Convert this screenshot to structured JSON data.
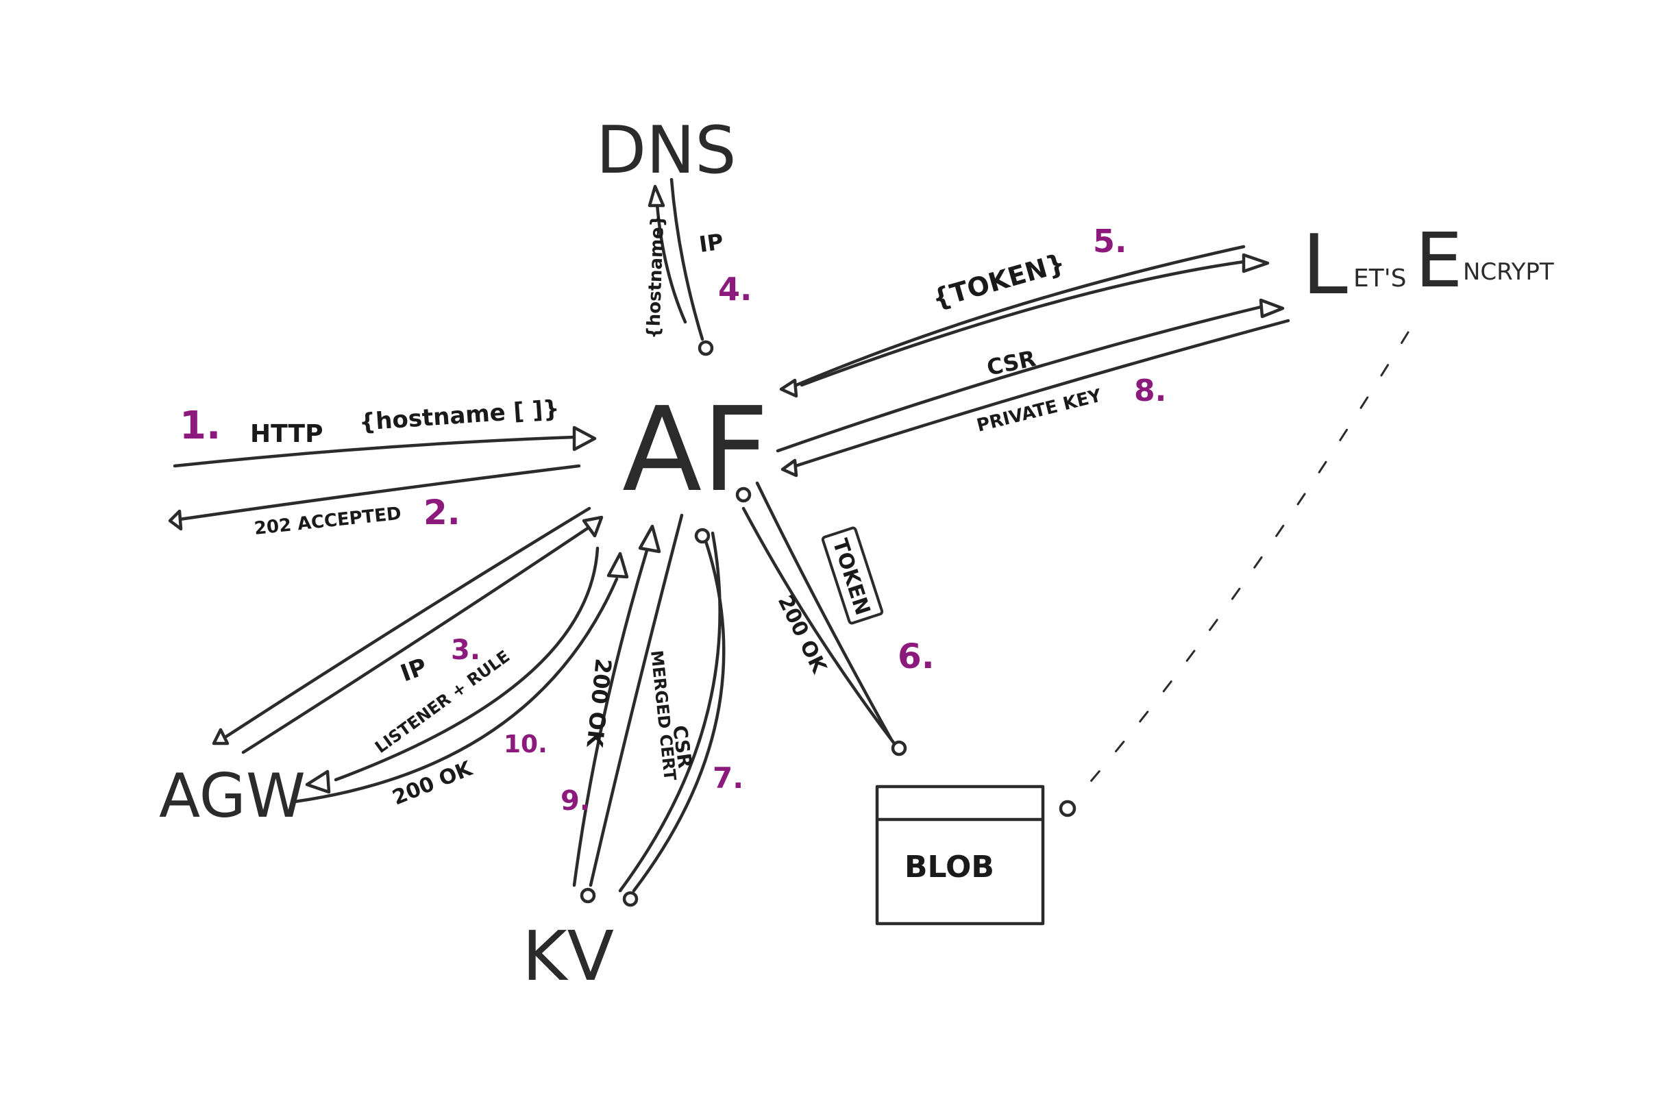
{
  "colors": {
    "ink": "#2b2b2b",
    "step_number": "#8b1a7c",
    "background": "#ffffff"
  },
  "nodes": {
    "dns": "DNS",
    "af": "AF",
    "lets_prefix": "L",
    "lets_small": "ET'S",
    "encrypt_prefix": "E",
    "encrypt_small": "NCRYPT",
    "agw": "AGW",
    "kv": "KV",
    "blob": "BLOB"
  },
  "edges": {
    "http_label": "HTTP",
    "hostname_array": "{hostname [ ]}",
    "accepted_label": "202 ACCEPTED",
    "dns_hostname": "{hostname}",
    "dns_ip": "IP",
    "token_braces": "{TOKEN}",
    "csr_le": "CSR",
    "private_key": "PRIVATE KEY",
    "token_box": "TOKEN",
    "blob_ok": "200 OK",
    "agw_ip": "IP",
    "listener_rule": "LISTENER + RULE",
    "agw_ok": "200 OK",
    "kv_ok": "200 OK",
    "merged_cert": "MERGED CERT",
    "kv_csr": "CSR"
  },
  "steps": {
    "s1": "1.",
    "s2": "2.",
    "s3": "3.",
    "s4": "4.",
    "s5": "5.",
    "s6": "6.",
    "s7": "7.",
    "s8": "8.",
    "s9": "9.",
    "s10": "10."
  }
}
